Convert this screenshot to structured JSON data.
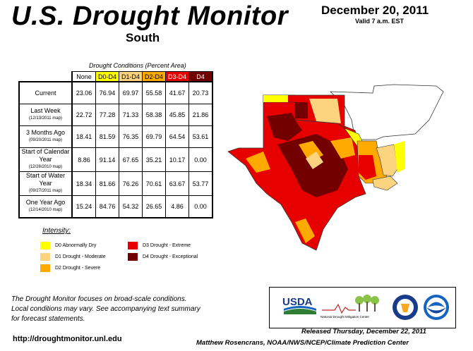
{
  "header": {
    "title": "U.S. Drought Monitor",
    "region": "South",
    "date": "December 20, 2011",
    "valid": "Valid 7 a.m. EST"
  },
  "table": {
    "caption": "Drought Conditions (Percent Area)",
    "columns": [
      "None",
      "D0-D4",
      "D1-D4",
      "D2-D4",
      "D3-D4",
      "D4"
    ],
    "column_colors": [
      "#ffffff",
      "#ffff00",
      "#fcd37f",
      "#ffaa00",
      "#e60000",
      "#730000"
    ],
    "rows": [
      {
        "label": "Current",
        "sub": "",
        "values": [
          "23.06",
          "76.94",
          "69.97",
          "55.58",
          "41.67",
          "20.73"
        ]
      },
      {
        "label": "Last Week",
        "sub": "(12/13/2011 map)",
        "values": [
          "22.72",
          "77.28",
          "71.33",
          "58.38",
          "45.85",
          "21.86"
        ]
      },
      {
        "label": "3 Months Ago",
        "sub": "(09/20/2011 map)",
        "values": [
          "18.41",
          "81.59",
          "76.35",
          "69.79",
          "64.54",
          "53.61"
        ]
      },
      {
        "label": "Start of Calendar Year",
        "sub": "(12/28/2010 map)",
        "values": [
          "8.86",
          "91.14",
          "67.65",
          "35.21",
          "10.17",
          "0.00"
        ]
      },
      {
        "label": "Start of Water Year",
        "sub": "(09/27/2011 map)",
        "values": [
          "18.34",
          "81.66",
          "76.26",
          "70.61",
          "63.67",
          "53.77"
        ]
      },
      {
        "label": "One Year Ago",
        "sub": "(12/14/2010 map)",
        "values": [
          "15.24",
          "84.76",
          "54.32",
          "26.65",
          "4.86",
          "0.00"
        ]
      }
    ]
  },
  "legend": {
    "title": "Intensity:",
    "items": [
      {
        "label": "D0 Abnormally Dry",
        "color": "#ffff00"
      },
      {
        "label": "D1 Drought - Moderate",
        "color": "#fcd37f"
      },
      {
        "label": "D2 Drought - Severe",
        "color": "#ffaa00"
      },
      {
        "label": "D3 Drought - Extreme",
        "color": "#e60000"
      },
      {
        "label": "D4 Drought - Exceptional",
        "color": "#730000"
      }
    ]
  },
  "note": {
    "line1": "The Drought Monitor focuses on broad-scale conditions.",
    "line2": "Local conditions may vary. See accompanying text summary",
    "line3": "for forecast statements."
  },
  "footer": {
    "url": "http://droughtmonitor.unl.edu",
    "released": "Released Thursday, December 22, 2011",
    "author": "Matthew Rosencrans, NOAA/NWS/NCEP/Climate Prediction Center"
  },
  "logos": {
    "usda": "USDA",
    "ndmc_line1": "National",
    "ndmc_line2": "Drought Mitigation Center"
  }
}
